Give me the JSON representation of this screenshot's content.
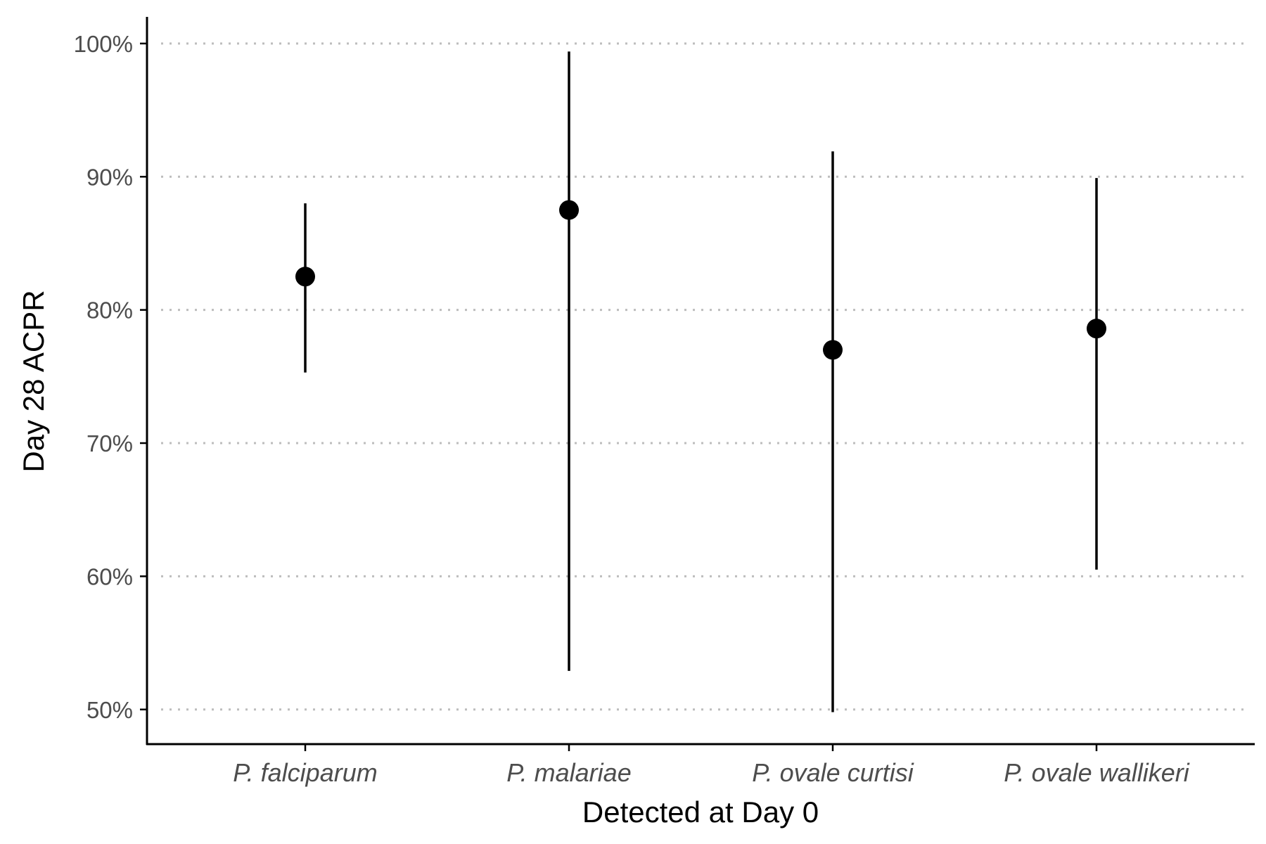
{
  "chart_data": {
    "type": "pointrange",
    "title": "",
    "xlabel": "Detected at Day 0",
    "ylabel": "Day 28 ACPR",
    "categories": [
      "P. falciparum",
      "P. malariae",
      "P. ovale curtisi",
      "P. ovale wallikeri"
    ],
    "estimates": [
      82.5,
      87.5,
      77.0,
      78.6
    ],
    "lower": [
      75.3,
      52.9,
      49.8,
      60.5
    ],
    "upper": [
      88.0,
      99.4,
      91.9,
      89.9
    ],
    "ylim": [
      47.4,
      102
    ],
    "yticks": [
      50,
      60,
      70,
      80,
      90,
      100
    ],
    "ytick_labels": [
      "50%",
      "60%",
      "70%",
      "80%",
      "90%",
      "100%"
    ],
    "grid": "horizontal dotted",
    "legend": "none",
    "colors": {
      "point": "#000000",
      "errorbar": "#000000",
      "grid": "#bdbdbd",
      "axis": "#000000",
      "tick_text": "#4d4d4d"
    }
  }
}
